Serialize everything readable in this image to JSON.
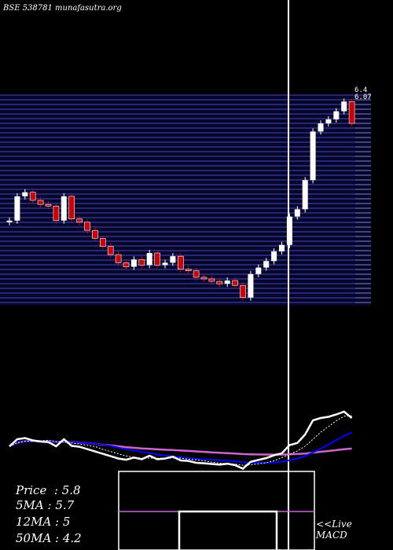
{
  "header": "BSE 538781 munafasutra.org",
  "price_labels": [
    "6.4",
    "6.07"
  ],
  "stats": [
    {
      "label": "Price",
      "value": "5.8"
    },
    {
      "label": "5MA",
      "value": "5.7"
    },
    {
      "label": "12MA",
      "value": "5"
    },
    {
      "label": "50MA",
      "value": "4.2"
    }
  ],
  "macd_label": [
    "<<Live",
    "MACD"
  ],
  "colors": {
    "background": "#000000",
    "band": "#1a1a6e",
    "up_candle": "#ffffff",
    "down_candle": "#cc0000",
    "ma_fast": "#0000ff",
    "ma_slow": "#cc66cc",
    "macd_signal": "#cc66cc"
  },
  "chart_data": {
    "type": "candlestick",
    "series": [
      {
        "name": "price",
        "values": [
          4.6,
          4.9,
          4.95,
          4.85,
          4.8,
          4.78,
          4.6,
          4.9,
          4.62,
          4.58,
          4.48,
          4.38,
          4.28,
          4.18,
          4.08,
          4.03,
          4.12,
          4.05,
          4.2,
          4.05,
          4.08,
          4.16,
          4.0,
          3.98,
          3.9,
          3.88,
          3.85,
          3.82,
          3.86,
          3.8,
          3.65,
          3.94,
          4.02,
          4.1,
          4.22,
          4.3,
          4.65,
          4.74,
          5.1,
          5.7,
          5.8,
          5.85,
          5.95,
          6.07,
          5.8
        ]
      }
    ]
  }
}
